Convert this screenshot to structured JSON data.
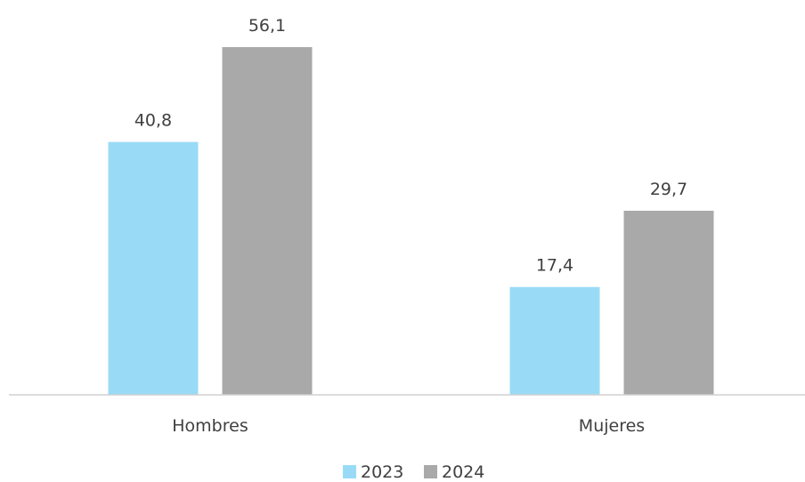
{
  "chart_data": {
    "type": "bar",
    "categories": [
      "Hombres",
      "Mujeres"
    ],
    "series": [
      {
        "name": "2023",
        "values": [
          40.8,
          17.4
        ],
        "labels": [
          "40,8",
          "17,4"
        ],
        "color": "#99dbf6"
      },
      {
        "name": "2024",
        "values": [
          56.1,
          29.7
        ],
        "labels": [
          "56,1",
          "29,7"
        ],
        "color": "#a9a9a9"
      }
    ],
    "title": "",
    "xlabel": "",
    "ylabel": "",
    "ylim": [
      0,
      56.1
    ],
    "grid": false,
    "legend": "bottom"
  }
}
